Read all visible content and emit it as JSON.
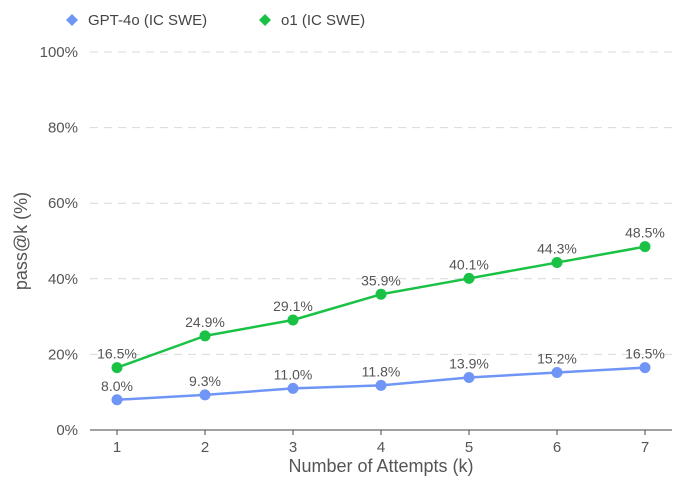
{
  "chart_data": {
    "type": "line",
    "title": "",
    "xlabel": "Number of Attempts (k)",
    "ylabel": "pass@k (%)",
    "x": [
      1,
      2,
      3,
      4,
      5,
      6,
      7
    ],
    "ylim": [
      0,
      100
    ],
    "yticks": [
      0,
      20,
      40,
      60,
      80,
      100
    ],
    "ytick_labels": [
      "0%",
      "20%",
      "40%",
      "60%",
      "80%",
      "100%"
    ],
    "grid": true,
    "legend_position": "top-left",
    "series": [
      {
        "name": "GPT-4o (IC SWE)",
        "color": "#6f95f6",
        "values": [
          8.0,
          9.3,
          11.0,
          11.8,
          13.9,
          15.2,
          16.5
        ],
        "labels": [
          "8.0%",
          "9.3%",
          "11.0%",
          "11.8%",
          "13.9%",
          "15.2%",
          "16.5%"
        ]
      },
      {
        "name": "o1 (IC SWE)",
        "color": "#19c245",
        "values": [
          16.5,
          24.9,
          29.1,
          35.9,
          40.1,
          44.3,
          48.5
        ],
        "labels": [
          "16.5%",
          "24.9%",
          "29.1%",
          "35.9%",
          "40.1%",
          "44.3%",
          "48.5%"
        ]
      }
    ]
  }
}
